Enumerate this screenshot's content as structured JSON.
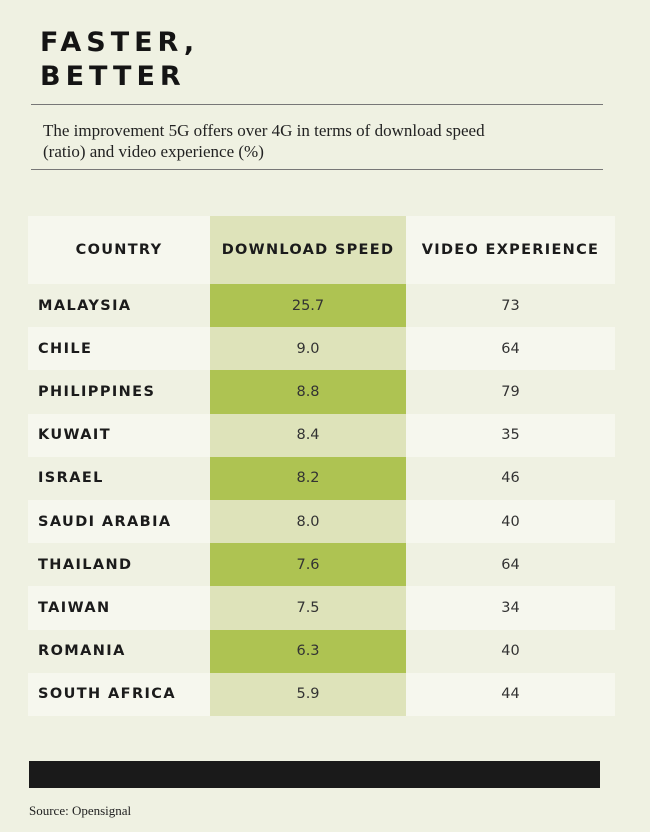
{
  "title_lines": [
    "FASTER,",
    "BETTER"
  ],
  "subtitle": "The improvement 5G offers over 4G in terms of download speed (ratio) and video experience (%)",
  "headers": [
    "COUNTRY",
    "DOWNLOAD SPEED",
    "VIDEO EXPERIENCE"
  ],
  "source": "Source: Opensignal",
  "colors": {
    "background": "#eff1e2",
    "download_dark": "#aec352",
    "download_light": "#dee3ba"
  },
  "chart_data": {
    "type": "table",
    "title": "FASTER, BETTER",
    "subtitle": "The improvement 5G offers over 4G in terms of download speed (ratio) and video experience (%)",
    "columns": [
      "COUNTRY",
      "DOWNLOAD SPEED",
      "VIDEO EXPERIENCE"
    ],
    "rows": [
      [
        "MALAYSIA",
        "25.7",
        "73"
      ],
      [
        "CHILE",
        "9.0",
        "64"
      ],
      [
        "PHILIPPINES",
        "8.8",
        "79"
      ],
      [
        "KUWAIT",
        "8.4",
        "35"
      ],
      [
        "ISRAEL",
        "8.2",
        "46"
      ],
      [
        "SAUDI ARABIA",
        "8.0",
        "40"
      ],
      [
        "THAILAND",
        "7.6",
        "64"
      ],
      [
        "TAIWAN",
        "7.5",
        "34"
      ],
      [
        "ROMANIA",
        "6.3",
        "40"
      ],
      [
        "SOUTH AFRICA",
        "5.9",
        "44"
      ]
    ]
  }
}
